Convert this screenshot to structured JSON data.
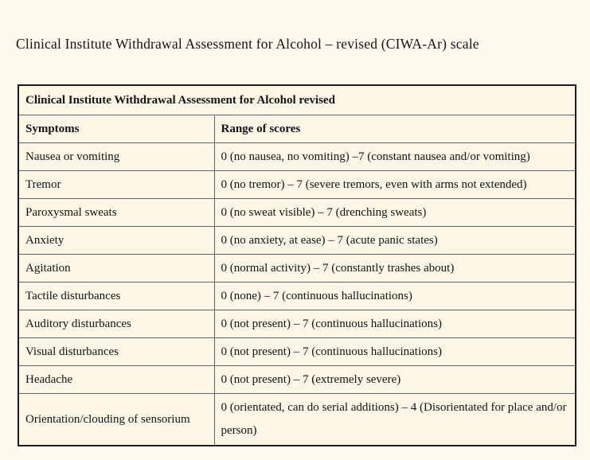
{
  "page": {
    "title": "Clinical Institute Withdrawal Assessment for Alcohol – revised (CIWA-Ar) scale"
  },
  "table": {
    "title": "Clinical Institute Withdrawal Assessment for Alcohol revised",
    "columns": [
      "Symptoms",
      "Range of scores"
    ],
    "rows": [
      {
        "symptom": "Nausea or vomiting",
        "range": "0 (no nausea, no vomiting) –7 (constant nausea and/or vomiting)"
      },
      {
        "symptom": "Tremor",
        "range": "0 (no tremor) – 7 (severe tremors, even with arms not extended)"
      },
      {
        "symptom": "Paroxysmal sweats",
        "range": "0 (no sweat visible) – 7 (drenching sweats)"
      },
      {
        "symptom": "Anxiety",
        "range": "0 (no anxiety, at ease) – 7 (acute panic states)"
      },
      {
        "symptom": "Agitation",
        "range": "0 (normal activity) – 7 (constantly trashes about)"
      },
      {
        "symptom": "Tactile disturbances",
        "range": "0 (none) – 7 (continuous hallucinations)"
      },
      {
        "symptom": "Auditory disturbances",
        "range": "0 (not present) – 7 (continuous hallucinations)"
      },
      {
        "symptom": "Visual disturbances",
        "range": "0 (not present) – 7 (continuous hallucinations)"
      },
      {
        "symptom": "Headache",
        "range": "0 (not present) – 7 (extremely severe)"
      },
      {
        "symptom": "Orientation/clouding of sensorium",
        "range": "0 (orientated, can do serial additions) – 4 (Disorientated for place and/or person)"
      }
    ]
  },
  "colors": {
    "page_background": "#fdfaee",
    "table_background": "#fbf6e6",
    "outer_border": "#1c1c1c",
    "inner_border": "#646464",
    "text": "#141414"
  }
}
